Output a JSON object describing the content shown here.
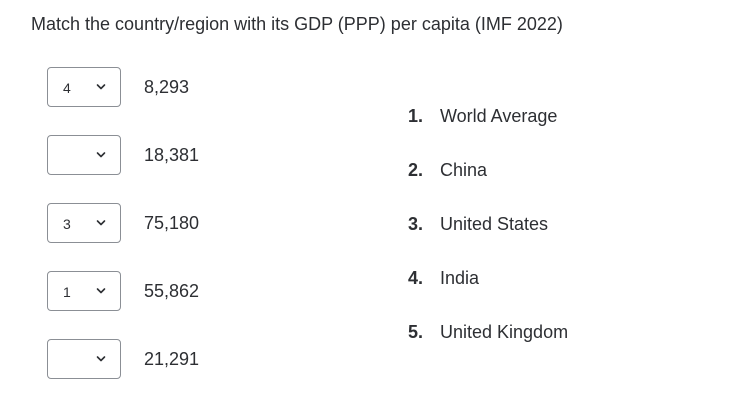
{
  "question": {
    "prompt": "Match the country/region with its GDP (PPP) per capita (IMF 2022)"
  },
  "matches": [
    {
      "selected": "4",
      "value": "8,293"
    },
    {
      "selected": "",
      "value": "18,381"
    },
    {
      "selected": "3",
      "value": "75,180"
    },
    {
      "selected": "1",
      "value": "55,862"
    },
    {
      "selected": "",
      "value": "21,291"
    }
  ],
  "options": [
    {
      "number": "1.",
      "label": "World Average"
    },
    {
      "number": "2.",
      "label": "China"
    },
    {
      "number": "3.",
      "label": "United States"
    },
    {
      "number": "4.",
      "label": "India"
    },
    {
      "number": "5.",
      "label": "United Kingdom"
    }
  ],
  "icons": {
    "dropdown": "chevron-down-icon"
  },
  "colors": {
    "text": "#2d2f33",
    "border": "#8b8f95",
    "background": "#ffffff"
  }
}
